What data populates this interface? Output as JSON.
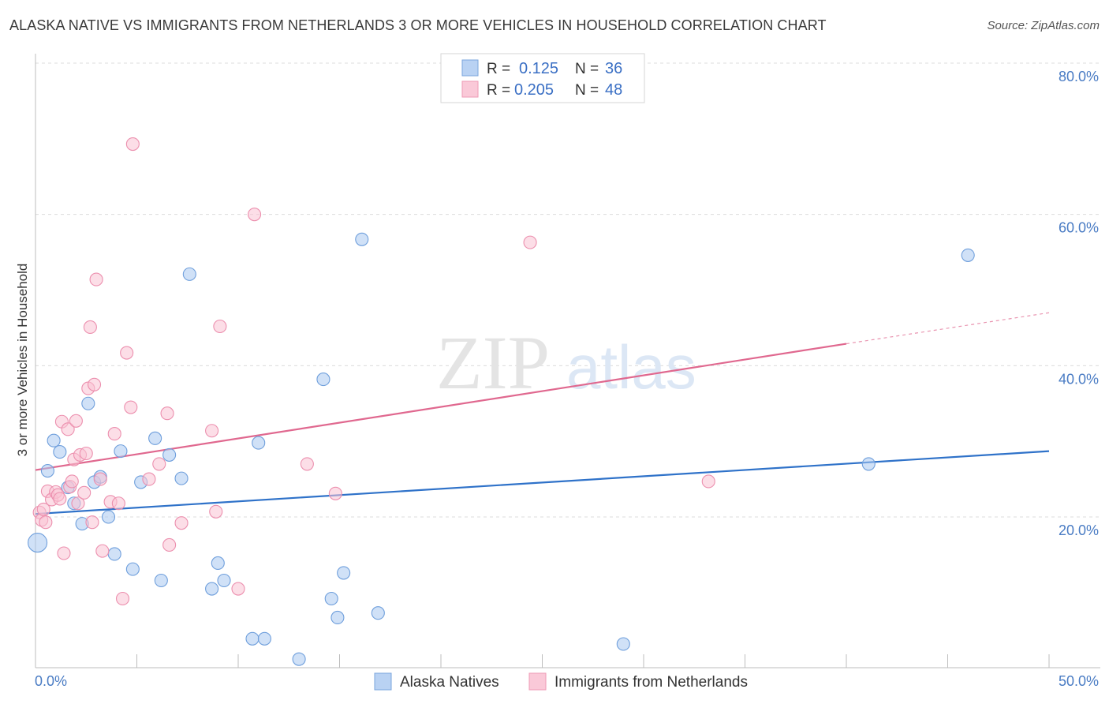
{
  "title": "ALASKA NATIVE VS IMMIGRANTS FROM NETHERLANDS 3 OR MORE VEHICLES IN HOUSEHOLD CORRELATION CHART",
  "source": "Source: ZipAtlas.com",
  "watermark": {
    "zip": "ZIP",
    "atlas": "atlas"
  },
  "legend": {
    "series": [
      {
        "r_label": "R = ",
        "r_value": "0.125",
        "n_label": "N = ",
        "n_value": "36"
      },
      {
        "r_label": "R = ",
        "r_value": "0.205",
        "n_label": "N = ",
        "n_value": "48"
      }
    ]
  },
  "chart_data": {
    "type": "scatter",
    "title": "ALASKA NATIVE VS IMMIGRANTS FROM NETHERLANDS 3 OR MORE VEHICLES IN HOUSEHOLD CORRELATION CHART",
    "xlabel": "",
    "ylabel": "3 or more Vehicles in Household",
    "xlim": [
      0,
      50
    ],
    "ylim": [
      0,
      85
    ],
    "x_tick_labels": [
      "0.0%",
      "50.0%"
    ],
    "x_ticks": [
      0,
      5,
      10,
      15,
      20,
      25,
      30,
      35,
      40,
      45,
      50
    ],
    "y_ticks": [
      20,
      40,
      60,
      80
    ],
    "y_tick_labels": [
      "20.0%",
      "40.0%",
      "60.0%",
      "80.0%"
    ],
    "grid": "horizontal dashed",
    "legend_position": "top-center",
    "series": [
      {
        "name": "Alaska Natives",
        "color": "#a9c8f0",
        "stroke": "#6f9fdc",
        "line_color": "#2f72c9",
        "trend": {
          "x0": 0,
          "y0": 20.4,
          "x1": 50,
          "y1": 28.7
        },
        "points": [
          [
            0.1,
            16.6
          ],
          [
            0.6,
            26.1
          ],
          [
            0.9,
            30.1
          ],
          [
            1.2,
            28.6
          ],
          [
            1.6,
            23.9
          ],
          [
            1.9,
            21.8
          ],
          [
            2.3,
            19.1
          ],
          [
            2.6,
            35.0
          ],
          [
            2.9,
            24.6
          ],
          [
            3.2,
            25.3
          ],
          [
            3.6,
            20.0
          ],
          [
            3.9,
            15.1
          ],
          [
            4.2,
            28.7
          ],
          [
            4.8,
            13.1
          ],
          [
            5.2,
            24.6
          ],
          [
            5.9,
            30.4
          ],
          [
            6.2,
            11.6
          ],
          [
            6.6,
            28.2
          ],
          [
            7.2,
            25.1
          ],
          [
            7.6,
            52.1
          ],
          [
            8.7,
            10.5
          ],
          [
            9.0,
            13.9
          ],
          [
            9.3,
            11.6
          ],
          [
            10.7,
            3.9
          ],
          [
            11.0,
            29.8
          ],
          [
            11.3,
            3.9
          ],
          [
            13.0,
            1.2
          ],
          [
            14.2,
            38.2
          ],
          [
            14.6,
            9.2
          ],
          [
            14.9,
            6.7
          ],
          [
            15.2,
            12.6
          ],
          [
            16.1,
            56.7
          ],
          [
            16.9,
            7.3
          ],
          [
            29.0,
            3.2
          ],
          [
            41.1,
            27.0
          ],
          [
            46.0,
            54.6
          ]
        ]
      },
      {
        "name": "Immigrants from Netherlands",
        "color": "#f9c3d3",
        "stroke": "#ec8fae",
        "line_color": "#e0688f",
        "trend": {
          "x0": 0,
          "y0": 26.2,
          "x1": 40.0,
          "y1": 42.9
        },
        "trend_dashed": {
          "x0": 40.0,
          "y0": 42.9,
          "x1": 50,
          "y1": 47.0
        },
        "points": [
          [
            0.2,
            20.6
          ],
          [
            0.3,
            19.6
          ],
          [
            0.4,
            21.0
          ],
          [
            0.5,
            19.3
          ],
          [
            0.6,
            23.4
          ],
          [
            0.8,
            22.3
          ],
          [
            1.0,
            23.3
          ],
          [
            1.1,
            22.9
          ],
          [
            1.2,
            22.4
          ],
          [
            1.3,
            32.6
          ],
          [
            1.4,
            15.2
          ],
          [
            1.6,
            31.6
          ],
          [
            1.7,
            24.0
          ],
          [
            1.8,
            24.7
          ],
          [
            1.9,
            27.6
          ],
          [
            2.0,
            32.7
          ],
          [
            2.1,
            21.8
          ],
          [
            2.2,
            28.2
          ],
          [
            2.4,
            23.2
          ],
          [
            2.5,
            28.4
          ],
          [
            2.6,
            37.0
          ],
          [
            2.7,
            45.1
          ],
          [
            2.8,
            19.3
          ],
          [
            2.9,
            37.5
          ],
          [
            3.0,
            51.4
          ],
          [
            3.2,
            25.0
          ],
          [
            3.3,
            15.5
          ],
          [
            3.7,
            22.0
          ],
          [
            3.9,
            31.0
          ],
          [
            4.1,
            21.8
          ],
          [
            4.3,
            9.2
          ],
          [
            4.5,
            41.7
          ],
          [
            4.7,
            34.5
          ],
          [
            4.8,
            69.3
          ],
          [
            5.6,
            25.0
          ],
          [
            6.1,
            27.0
          ],
          [
            6.5,
            33.7
          ],
          [
            6.6,
            16.3
          ],
          [
            7.2,
            19.2
          ],
          [
            8.7,
            31.4
          ],
          [
            8.9,
            20.7
          ],
          [
            9.1,
            45.2
          ],
          [
            10.0,
            10.5
          ],
          [
            10.8,
            60.0
          ],
          [
            13.4,
            27.0
          ],
          [
            14.8,
            23.1
          ],
          [
            24.4,
            56.3
          ],
          [
            33.2,
            24.7
          ]
        ]
      }
    ]
  }
}
